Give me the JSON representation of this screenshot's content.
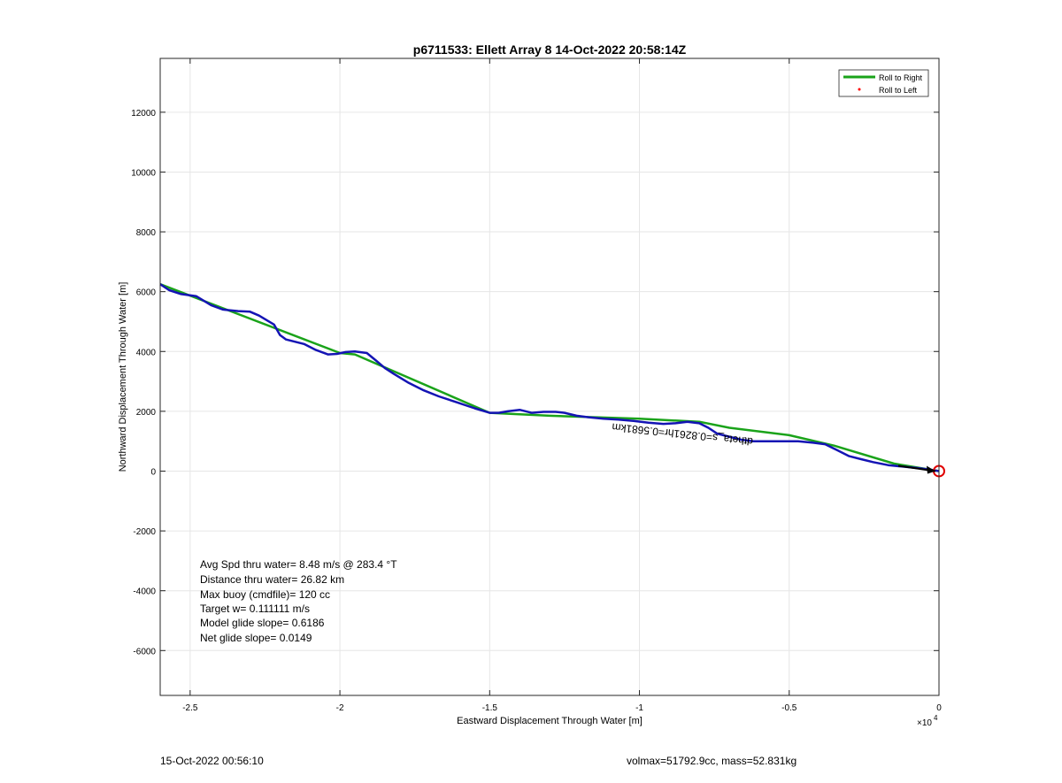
{
  "chart_data": {
    "type": "line",
    "title": "p6711533: Ellett Array 8 14-Oct-2022 20:58:14Z",
    "xlabel": "Eastward Displacement Through Water [m]",
    "ylabel": "Northward Displacement Through Water [m]",
    "x_exponent_label": "×10",
    "x_exponent_power": "4",
    "xlim": [
      -26000,
      0
    ],
    "ylim": [
      -7500,
      13800
    ],
    "x_ticks": [
      -25000,
      -20000,
      -15000,
      -10000,
      -5000,
      0
    ],
    "x_tick_labels": [
      "-2.5",
      "-2",
      "-1.5",
      "-1",
      "-0.5",
      "0"
    ],
    "y_ticks": [
      -6000,
      -4000,
      -2000,
      0,
      2000,
      4000,
      6000,
      8000,
      10000,
      12000
    ],
    "y_tick_labels": [
      "-6000",
      "-4000",
      "-2000",
      "0",
      "2000",
      "4000",
      "6000",
      "8000",
      "10000",
      "12000"
    ],
    "grid": true,
    "legend_position": "top-right",
    "legend": [
      {
        "label": "Roll to Right",
        "color": "#1aa31a",
        "marker": "line"
      },
      {
        "label": "Roll to Left",
        "color": "#ff0000",
        "marker": "dot"
      }
    ],
    "series": [
      {
        "color": "#1aa31a",
        "x": [
          -26000,
          -20000,
          -19500,
          -15000,
          -13000,
          -10000,
          -8000,
          -7000,
          -5000,
          -3500,
          -1500,
          0
        ],
        "y": [
          6250,
          3950,
          3900,
          1950,
          1850,
          1750,
          1650,
          1450,
          1200,
          850,
          250,
          0
        ]
      },
      {
        "color": "#1414b4",
        "x": [
          -26000,
          -25700,
          -25300,
          -24800,
          -24300,
          -23900,
          -23400,
          -23000,
          -22700,
          -22200,
          -22000,
          -21800,
          -21200,
          -20800,
          -20400,
          -20100,
          -19800,
          -19500,
          -19100,
          -18800,
          -18500,
          -18200,
          -17700,
          -17200,
          -16700,
          -16100,
          -15500,
          -15000,
          -14700,
          -14400,
          -14000,
          -13600,
          -13200,
          -12800,
          -12500,
          -12100,
          -11700,
          -11200,
          -10700,
          -10200,
          -9700,
          -9200,
          -8800,
          -8400,
          -8000,
          -7700,
          -7400,
          -7000,
          -6600,
          -6200,
          -5700,
          -5200,
          -4700,
          -4200,
          -3800,
          -3400,
          -3000,
          -2600,
          -2200,
          -1700,
          -1200,
          -700,
          -300,
          0
        ],
        "y": [
          6250,
          6050,
          5920,
          5850,
          5550,
          5400,
          5350,
          5330,
          5200,
          4900,
          4550,
          4400,
          4250,
          4050,
          3900,
          3920,
          3980,
          4000,
          3950,
          3700,
          3450,
          3250,
          2950,
          2700,
          2500,
          2300,
          2100,
          1950,
          1950,
          2000,
          2050,
          1950,
          1980,
          1980,
          1950,
          1850,
          1800,
          1750,
          1720,
          1680,
          1620,
          1580,
          1600,
          1650,
          1600,
          1450,
          1250,
          1150,
          1050,
          1000,
          1000,
          1000,
          1000,
          950,
          900,
          700,
          500,
          400,
          300,
          200,
          150,
          100,
          50,
          0
        ]
      }
    ],
    "end_marker": {
      "x": 0,
      "y": 0,
      "color": "#e00000"
    },
    "path_annotation": {
      "text": "dtheta_s=0.8261hr=0.5681km",
      "color": "#000000",
      "rotation_deg": 186,
      "anchor_x": -6200,
      "anchor_y": 1100
    },
    "stats_box": {
      "avg_speed": "Avg Spd thru water=  8.48 m/s @ 283.4 °T",
      "distance": "Distance thru water= 26.82 km",
      "max_buoy": "Max buoy (cmdfile)= 120 cc",
      "target_w": "Target w= 0.111111 m/s",
      "model_glide": "Model glide slope= 0.6186",
      "net_glide": "Net glide slope= 0.0149"
    }
  },
  "footer": {
    "timestamp": "15-Oct-2022 00:56:10",
    "volmax_mass": "volmax=51792.9cc, mass=52.831kg"
  }
}
